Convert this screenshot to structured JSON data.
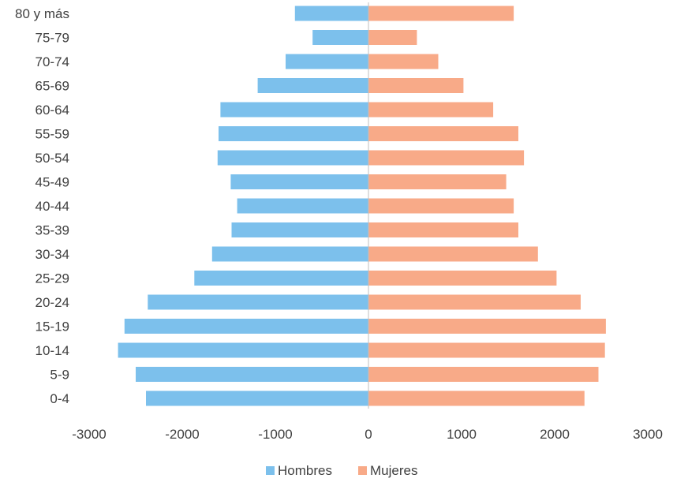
{
  "chart_data": {
    "type": "bar",
    "orientation": "horizontal",
    "subtype": "population-pyramid",
    "categories": [
      "80 y más",
      "75-79",
      "70-74",
      "65-69",
      "60-64",
      "55-59",
      "50-54",
      "45-49",
      "40-44",
      "35-39",
      "30-34",
      "25-29",
      "20-24",
      "15-19",
      "10-14",
      "5-9",
      "0-4"
    ],
    "series": [
      {
        "name": "Hombres",
        "color": "#7CC0EC",
        "values": [
          -790,
          -600,
          -890,
          -1190,
          -1590,
          -1610,
          -1620,
          -1480,
          -1410,
          -1470,
          -1680,
          -1870,
          -2370,
          -2620,
          -2690,
          -2500,
          -2390
        ]
      },
      {
        "name": "Mujeres",
        "color": "#F8AA88",
        "values": [
          1560,
          520,
          750,
          1020,
          1340,
          1610,
          1670,
          1480,
          1560,
          1610,
          1820,
          2020,
          2280,
          2550,
          2540,
          2470,
          2320
        ]
      }
    ],
    "xlim": [
      -3000,
      3000
    ],
    "xticks": [
      "-3000",
      "-2000",
      "-1000",
      "0",
      "1000",
      "2000",
      "3000"
    ],
    "grid": false,
    "legend_position": "bottom",
    "title": "",
    "xlabel": "",
    "ylabel": ""
  }
}
